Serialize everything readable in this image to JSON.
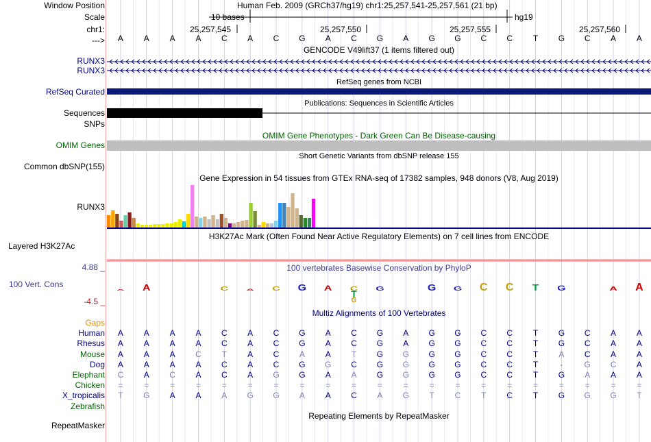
{
  "header": {
    "window_position_label": "Window Position",
    "scale_label": "Scale",
    "chr_label": "chr1:",
    "strand_label": "--->",
    "position_title": "Human Feb. 2009 (GRCh37/hg19)   chr1:25,257,541-25,257,561 (21 bp)",
    "scale_text": "10 bases",
    "assembly": "hg19",
    "ticks": [
      "25,257,545",
      "25,257,550",
      "25,257,555",
      "25,257,560"
    ],
    "sequence": [
      "A",
      "A",
      "A",
      "A",
      "C",
      "A",
      "C",
      "G",
      "A",
      "C",
      "G",
      "A",
      "G",
      "G",
      "C",
      "C",
      "T",
      "G",
      "C",
      "A",
      "A"
    ]
  },
  "tracks": {
    "gencode": {
      "title": "GENCODE V49lift37 (1 items filtered out)",
      "items": [
        "RUNX3",
        "RUNX3"
      ]
    },
    "refseq": {
      "label": "RefSeq Curated",
      "title": "RefSeq genes from NCBI"
    },
    "publications": {
      "label": "Sequences",
      "title": "Publications: Sequences in Scientific Articles"
    },
    "snps": {
      "label": "SNPs"
    },
    "omim": {
      "label": "OMIM Genes",
      "title": "OMIM Gene Phenotypes - Dark Green Can Be Disease-causing"
    },
    "dbsnp": {
      "label": "Common dbSNP(155)",
      "title": "Short Genetic Variants from dbSNP release 155"
    },
    "gtex": {
      "label": "RUNX3",
      "title": "Gene Expression in 54 tissues from GTEx RNA-seq of 17382 samples, 948 donors (V8, Aug 2019)",
      "bars": [
        {
          "v": 18,
          "c": "#ff8c00"
        },
        {
          "v": 25,
          "c": "#ffa500"
        },
        {
          "v": 20,
          "c": "#8b4513"
        },
        {
          "v": 10,
          "c": "#cd5c5c"
        },
        {
          "v": 18,
          "c": "#66cdaa"
        },
        {
          "v": 22,
          "c": "#8b1a1a"
        },
        {
          "v": 14,
          "c": "#cd853f"
        },
        {
          "v": 6,
          "c": "#eeee00"
        },
        {
          "v": 4,
          "c": "#eeee00"
        },
        {
          "v": 4,
          "c": "#eeee00"
        },
        {
          "v": 4,
          "c": "#eeee00"
        },
        {
          "v": 5,
          "c": "#eeee00"
        },
        {
          "v": 5,
          "c": "#eeee00"
        },
        {
          "v": 5,
          "c": "#eeee00"
        },
        {
          "v": 6,
          "c": "#eeee00"
        },
        {
          "v": 6,
          "c": "#eeee00"
        },
        {
          "v": 8,
          "c": "#eeee00"
        },
        {
          "v": 12,
          "c": "#eeee00"
        },
        {
          "v": 9,
          "c": "#00ced1"
        },
        {
          "v": 20,
          "c": "#ffd700"
        },
        {
          "v": 62,
          "c": "#ee82ee"
        },
        {
          "v": 16,
          "c": "#d2b48c"
        },
        {
          "v": 14,
          "c": "#87ceeb"
        },
        {
          "v": 16,
          "c": "#d2b48c"
        },
        {
          "v": 12,
          "c": "#c0c0c0"
        },
        {
          "v": 18,
          "c": "#d2b48c"
        },
        {
          "v": 12,
          "c": "#c0c0c0"
        },
        {
          "v": 20,
          "c": "#a0522d"
        },
        {
          "v": 14,
          "c": "#d2b48c"
        },
        {
          "v": 6,
          "c": "#8b008b"
        },
        {
          "v": 6,
          "c": "#d2b48c"
        },
        {
          "v": 8,
          "c": "#d2b48c"
        },
        {
          "v": 10,
          "c": "#d2b48c"
        },
        {
          "v": 11,
          "c": "#d2b48c"
        },
        {
          "v": 36,
          "c": "#9acd32"
        },
        {
          "v": 24,
          "c": "#7a8b3a"
        },
        {
          "v": 4,
          "c": "#d2b48c"
        },
        {
          "v": 8,
          "c": "#ffd700"
        },
        {
          "v": 6,
          "c": "#d2b48c"
        },
        {
          "v": 6,
          "c": "#b0c4de"
        },
        {
          "v": 10,
          "c": "#87ceeb"
        },
        {
          "v": 36,
          "c": "#1e90ff"
        },
        {
          "v": 36,
          "c": "#4682b4"
        },
        {
          "v": 30,
          "c": "#d2b48c"
        },
        {
          "v": 50,
          "c": "#d2b48c"
        },
        {
          "v": 28,
          "c": "#d2b48c"
        },
        {
          "v": 18,
          "c": "#556b2f"
        },
        {
          "v": 14,
          "c": "#228b22"
        },
        {
          "v": 14,
          "c": "#2e8b57"
        },
        {
          "v": 42,
          "c": "#ff00ff"
        }
      ]
    },
    "h3k27ac": {
      "label": "Layered H3K27Ac",
      "title": "H3K27Ac Mark (Often Found Near Active Regulatory Elements) on 7 cell lines from ENCODE"
    },
    "phylop": {
      "label": "100 Vert. Cons",
      "title": "100 vertebrates Basewise Conservation by PhyloP",
      "max": "4.88 _",
      "min": "-4.5 _"
    },
    "multiz": {
      "title": "Multiz Alignments of 100 Vertebrates",
      "species": [
        {
          "name": "Gaps",
          "color": "#e08c00",
          "seq": []
        },
        {
          "name": "Human",
          "color": "#000080",
          "seq": [
            "A",
            "A",
            "A",
            "A",
            "C",
            "A",
            "C",
            "G",
            "A",
            "C",
            "G",
            "A",
            "G",
            "G",
            "C",
            "C",
            "T",
            "G",
            "C",
            "A",
            "A"
          ]
        },
        {
          "name": "Rhesus",
          "color": "#000080",
          "seq": [
            "A",
            "A",
            "A",
            "A",
            "C",
            "A",
            "C",
            "G",
            "A",
            "C",
            "G",
            "A",
            "G",
            "G",
            "C",
            "C",
            "T",
            "G",
            "C",
            "A",
            "A"
          ]
        },
        {
          "name": "Mouse",
          "color": "#006400",
          "seq": [
            "A",
            "A",
            "A",
            "C",
            "T",
            "A",
            "C",
            "A",
            "A",
            "T",
            "G",
            "G",
            "G",
            "G",
            "C",
            "C",
            "T",
            "A",
            "C",
            "A",
            "A"
          ]
        },
        {
          "name": "Dog",
          "color": "#000080",
          "seq": [
            "A",
            "A",
            "A",
            "A",
            "C",
            "A",
            "C",
            "G",
            "G",
            "C",
            "G",
            "G",
            "G",
            "G",
            "C",
            "C",
            "T",
            "-",
            "G",
            "C",
            "A"
          ]
        },
        {
          "name": "Elephant",
          "color": "#006400",
          "seq": [
            "C",
            "A",
            "C",
            "A",
            "C",
            "A",
            "G",
            "G",
            "A",
            "A",
            "G",
            "G",
            "G",
            "G",
            "C",
            "C",
            "T",
            "G",
            "A",
            "A",
            "A"
          ]
        },
        {
          "name": "Chicken",
          "color": "#006400",
          "seq": [
            "=",
            "=",
            "=",
            "=",
            "=",
            "=",
            "=",
            "=",
            "=",
            "=",
            "=",
            "=",
            "=",
            "=",
            "=",
            "=",
            "=",
            "=",
            "=",
            "=",
            "="
          ]
        },
        {
          "name": "X_tropicalis",
          "color": "#000080",
          "seq": [
            "T",
            "G",
            "A",
            "A",
            "A",
            "G",
            "G",
            "A",
            "A",
            "C",
            "A",
            "G",
            "T",
            "C",
            "T",
            "C",
            "T",
            "G",
            "G",
            "G",
            "T"
          ]
        },
        {
          "name": "Zebrafish",
          "color": "#006400",
          "seq": []
        }
      ]
    },
    "repeatmasker": {
      "label": "RepeatMasker",
      "title": "Repeating Elements by RepeatMasker"
    }
  }
}
